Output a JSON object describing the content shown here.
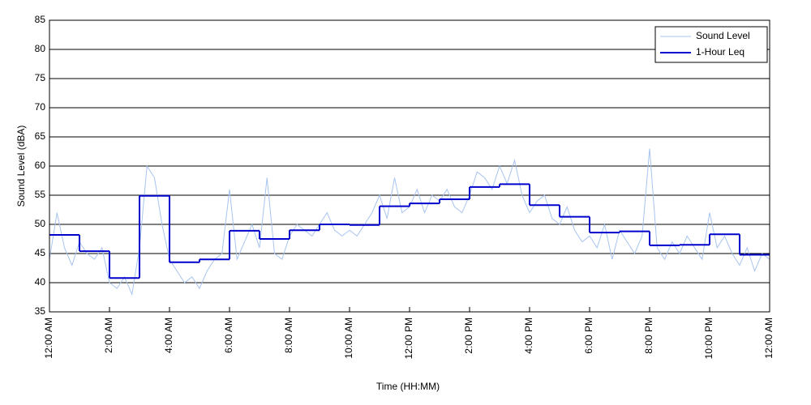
{
  "chart_data": {
    "type": "line",
    "xlabel": "Time (HH:MM)",
    "ylabel": "Sound Level (dBA)",
    "xlim": [
      0,
      24
    ],
    "ylim": [
      35,
      85
    ],
    "yticks": [
      35,
      40,
      45,
      50,
      55,
      60,
      65,
      70,
      75,
      80,
      85
    ],
    "xticks": [
      {
        "value": 0,
        "label": "12:00 AM"
      },
      {
        "value": 2,
        "label": "2:00 AM"
      },
      {
        "value": 4,
        "label": "4:00 AM"
      },
      {
        "value": 6,
        "label": "6:00 AM"
      },
      {
        "value": 8,
        "label": "8:00 AM"
      },
      {
        "value": 10,
        "label": "10:00 AM"
      },
      {
        "value": 12,
        "label": "12:00 PM"
      },
      {
        "value": 14,
        "label": "2:00 PM"
      },
      {
        "value": 16,
        "label": "4:00 PM"
      },
      {
        "value": 18,
        "label": "6:00 PM"
      },
      {
        "value": 20,
        "label": "8:00 PM"
      },
      {
        "value": 22,
        "label": "10:00 PM"
      },
      {
        "value": 24,
        "label": "12:00 AM"
      }
    ],
    "grid": true,
    "legend": "upper right",
    "series": [
      {
        "name": "Sound Level",
        "color": "#a8c4f0",
        "x": [
          0,
          0.25,
          0.5,
          0.75,
          1,
          1.25,
          1.5,
          1.75,
          2,
          2.25,
          2.5,
          2.75,
          3,
          3.25,
          3.5,
          3.75,
          4,
          4.25,
          4.5,
          4.75,
          5,
          5.25,
          5.5,
          5.75,
          6,
          6.25,
          6.5,
          6.75,
          7,
          7.25,
          7.5,
          7.75,
          8,
          8.25,
          8.5,
          8.75,
          9,
          9.25,
          9.5,
          9.75,
          10,
          10.25,
          10.5,
          10.75,
          11,
          11.25,
          11.5,
          11.75,
          12,
          12.25,
          12.5,
          12.75,
          13,
          13.25,
          13.5,
          13.75,
          14,
          14.25,
          14.5,
          14.75,
          15,
          15.25,
          15.5,
          15.75,
          16,
          16.25,
          16.5,
          16.75,
          17,
          17.25,
          17.5,
          17.75,
          18,
          18.25,
          18.5,
          18.75,
          19,
          19.25,
          19.5,
          19.75,
          20,
          20.25,
          20.5,
          20.75,
          21,
          21.25,
          21.5,
          21.75,
          22,
          22.25,
          22.5,
          22.75,
          23,
          23.25,
          23.5,
          23.75,
          24
        ],
        "values": [
          44,
          52,
          46,
          43,
          47,
          45,
          44,
          46,
          40,
          39,
          41,
          38,
          46,
          60,
          58,
          50,
          44,
          42,
          40,
          41,
          39,
          42,
          44,
          45,
          56,
          44,
          47,
          50,
          46,
          58,
          45,
          44,
          48,
          50,
          49,
          48,
          50,
          52,
          49,
          48,
          49,
          48,
          50,
          52,
          55,
          51,
          58,
          52,
          53,
          56,
          52,
          55,
          54,
          56,
          53,
          52,
          55,
          59,
          58,
          56,
          60,
          57,
          61,
          55,
          52,
          54,
          55,
          51,
          50,
          53,
          49,
          47,
          48,
          46,
          50,
          44,
          49,
          47,
          45,
          48,
          63,
          46,
          44,
          47,
          45,
          48,
          46,
          44,
          52,
          46,
          48,
          45,
          43,
          46,
          42,
          45,
          44
        ]
      },
      {
        "name": "1-Hour Leq",
        "color": "#0000cc",
        "step": "post",
        "x": [
          0,
          1,
          2,
          3,
          4,
          5,
          6,
          7,
          8,
          9,
          10,
          11,
          12,
          13,
          14,
          15,
          16,
          17,
          18,
          19,
          20,
          21,
          22,
          23
        ],
        "values": [
          48.2,
          45.4,
          40.8,
          54.9,
          43.5,
          44.0,
          48.9,
          47.5,
          49.0,
          50.0,
          49.9,
          53.1,
          53.6,
          54.3,
          56.4,
          56.9,
          53.3,
          51.3,
          48.6,
          48.8,
          46.4,
          46.5,
          48.3,
          44.8
        ]
      }
    ]
  }
}
